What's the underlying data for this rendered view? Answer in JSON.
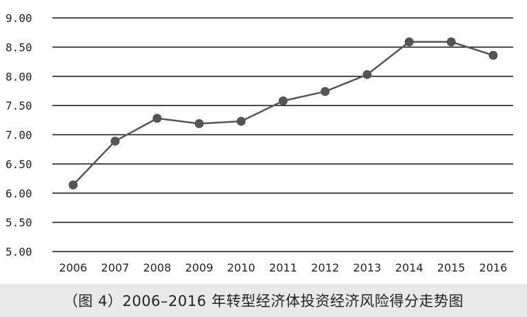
{
  "caption": "（图 4）2006–2016 年转型经济体投资经济风险得分走势图",
  "colors": {
    "line": "#555555",
    "marker": "#555555",
    "grid": "#111111",
    "caption_bg": "#e9e9e9"
  },
  "chart_data": {
    "type": "line",
    "title": "",
    "xlabel": "",
    "ylabel": "",
    "categories": [
      "2006",
      "2007",
      "2008",
      "2009",
      "2010",
      "2011",
      "2012",
      "2013",
      "2014",
      "2015",
      "2016"
    ],
    "series": [
      {
        "values": [
          6.14,
          6.89,
          7.28,
          7.19,
          7.23,
          7.58,
          7.74,
          8.03,
          8.59,
          8.59,
          8.36
        ]
      }
    ],
    "ylim": [
      5.0,
      9.0
    ],
    "yticks": [
      "9.00",
      "8.50",
      "8.00",
      "7.50",
      "7.00",
      "6.50",
      "6.00",
      "5.50",
      "5.00"
    ],
    "grid": true,
    "legend": "none"
  }
}
